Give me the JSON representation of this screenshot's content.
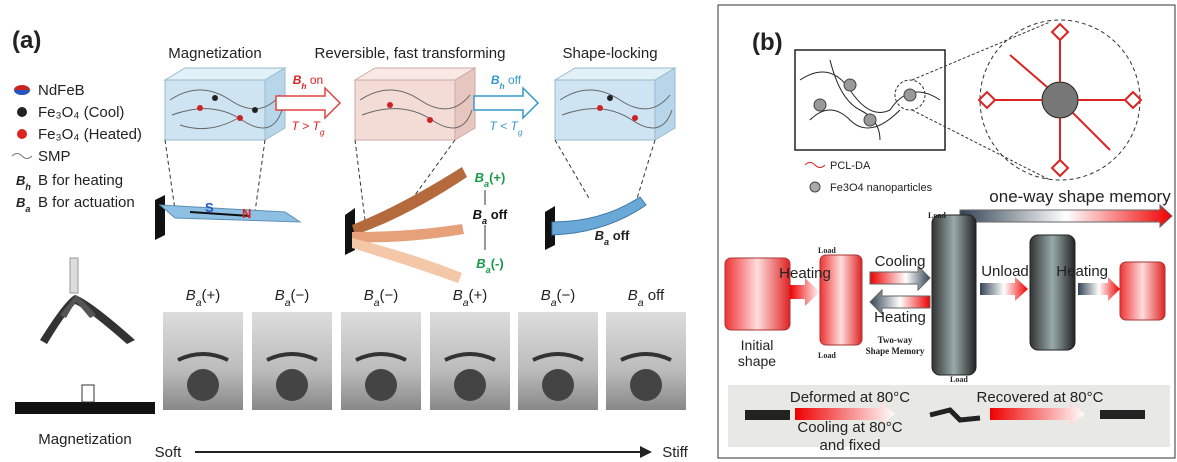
{
  "panel_a": {
    "label": "(a)",
    "stages": [
      "Magnetization",
      "Reversible, fast transforming",
      "Shape-locking"
    ],
    "legend": [
      "NdFeB",
      "Fe₃O₄ (Cool)",
      "Fe₃O₄ (Heated)",
      "SMP"
    ],
    "field_symbol": "B",
    "heating_sub": "h",
    "actuation_sub": "a",
    "heating_desc": "B for heating",
    "actuation_desc": "B  for actuation",
    "arrow_on": {
      "text": " on",
      "condition": "T > T",
      "condition_sub": "g"
    },
    "arrow_off": {
      "text": " off",
      "condition": "T < T",
      "condition_sub": "g"
    },
    "poles": [
      "S",
      "N"
    ],
    "actuation_states": [
      "(+)",
      " off",
      "(-)"
    ],
    "locked_state": " off",
    "photo_states": [
      "(+)",
      "(−)",
      "(−)",
      "(+)",
      "(−)",
      " off"
    ],
    "magnetization_label": "Magnetization",
    "scale_start": "Soft",
    "scale_end": "Stiff"
  },
  "panel_b": {
    "label": "(b)",
    "legend": [
      "PCL-DA",
      "Fe3O4 nanoparticles"
    ],
    "one_way": "one-way shape memory",
    "load": "Load",
    "steps": [
      "Heating",
      "Cooling",
      "Heating",
      "Unload",
      "Heating"
    ],
    "initial_shape": [
      "Initial",
      "shape"
    ],
    "two_way": [
      "Two-way",
      "Shape Memory"
    ],
    "deformed": "Deformed at 80°C",
    "cooling": [
      "Cooling at 80°C",
      "and fixed"
    ],
    "recovered": "Recovered at 80°C"
  }
}
